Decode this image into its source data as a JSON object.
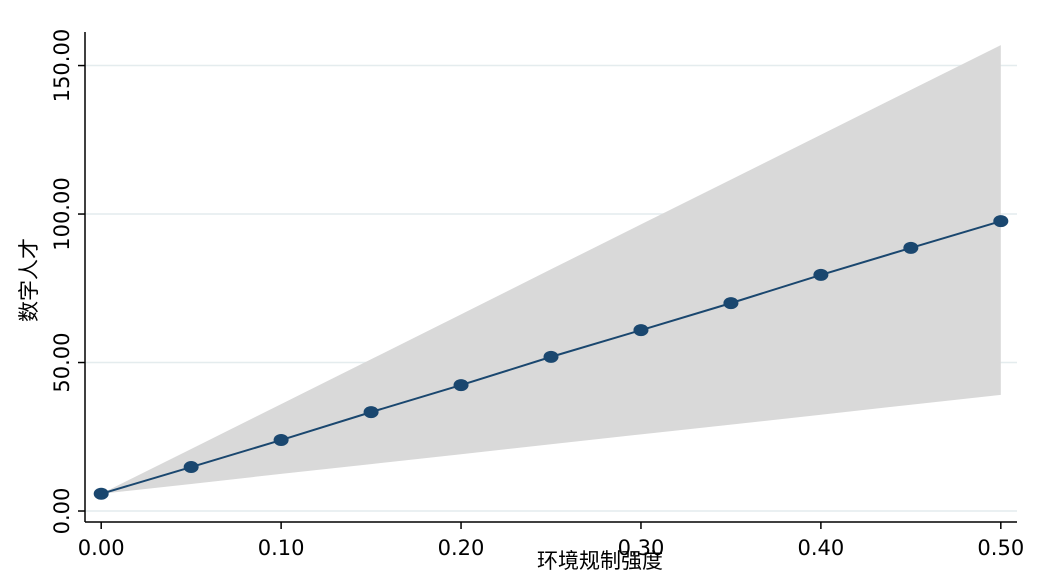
{
  "chart_data": {
    "type": "line",
    "x": [
      0,
      0.05,
      0.1,
      0.15,
      0.2,
      0.25,
      0.3,
      0.35,
      0.4,
      0.45,
      0.5
    ],
    "series": [
      {
        "color": "#1a476f",
        "values": [
          5.8,
          14.8,
          23.9,
          33.3,
          42.4,
          51.9,
          60.9,
          70.0,
          79.5,
          88.6,
          97.6
        ]
      }
    ],
    "ci_upper": [
      5.8,
      20.9,
      36.0,
      51.1,
      66.2,
      81.4,
      96.5,
      111.6,
      126.7,
      141.8,
      156.9
    ],
    "ci_lower": [
      5.8,
      9.1,
      12.5,
      15.8,
      19.1,
      22.5,
      25.8,
      29.1,
      32.4,
      35.8,
      39.1
    ],
    "ci_color": "#d9d9d9",
    "xlim": [
      -0.009,
      0.509
    ],
    "ylim": [
      -3.7,
      161.3
    ],
    "xticks": [
      {
        "value": 0,
        "label": "0.00"
      },
      {
        "value": 0.1,
        "label": "0.10"
      },
      {
        "value": 0.2,
        "label": "0.20"
      },
      {
        "value": 0.3,
        "label": "0.30"
      },
      {
        "value": 0.4,
        "label": "0.40"
      },
      {
        "value": 0.5,
        "label": "0.50"
      }
    ],
    "yticks": [
      {
        "value": 0,
        "label": "0.00"
      },
      {
        "value": 50,
        "label": "50.00"
      },
      {
        "value": 100,
        "label": "100.00"
      },
      {
        "value": 150,
        "label": "150.00"
      }
    ],
    "xlabel": "环境规制强度",
    "ylabel": "数字人才",
    "grid": true
  }
}
